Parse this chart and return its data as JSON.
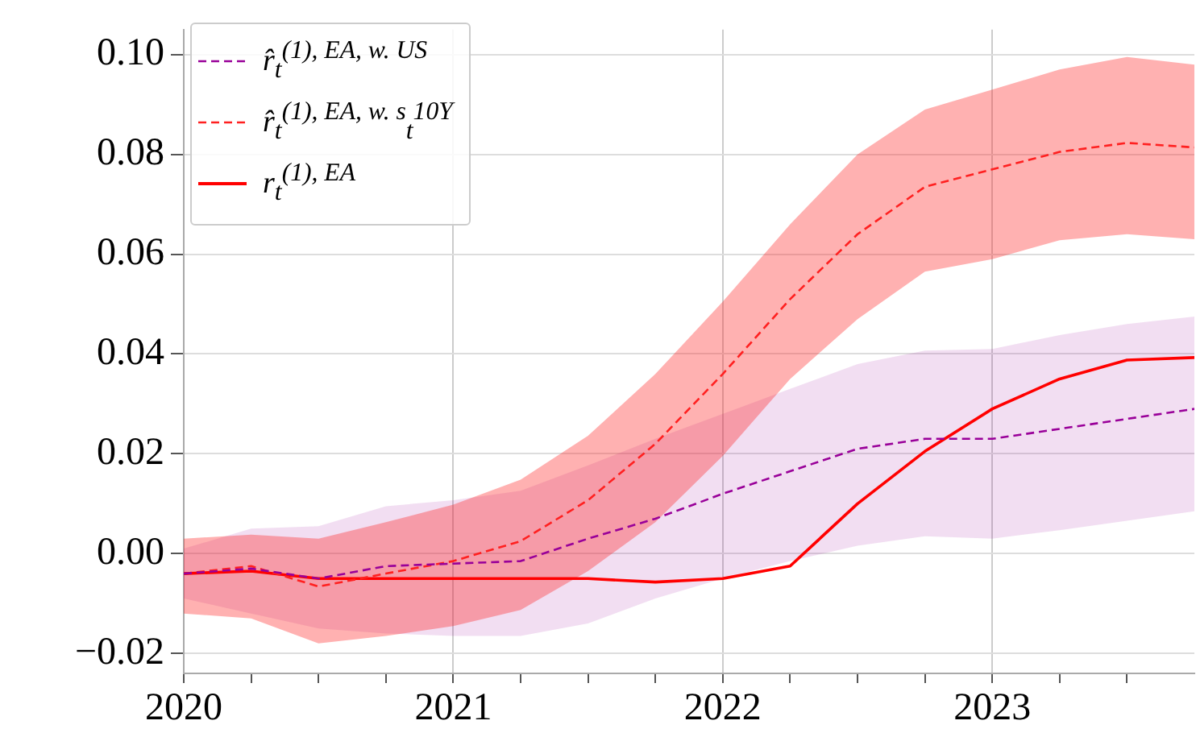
{
  "chart_data": {
    "type": "line",
    "x": [
      2020,
      2020.25,
      2020.5,
      2020.75,
      2021,
      2021.25,
      2021.5,
      2021.75,
      2022,
      2022.25,
      2022.5,
      2022.75,
      2023,
      2023.25,
      2023.5,
      2023.75
    ],
    "series": [
      {
        "name": "r̂$_{t}$$^{(1), EA, w. US}$",
        "color": "#990099",
        "line_style": "dashed",
        "values": [
          -0.004,
          -0.003,
          -0.005,
          -0.0025,
          -0.002,
          -0.0015,
          0.003,
          0.007,
          0.012,
          0.0165,
          0.021,
          0.023,
          0.023,
          0.025,
          0.027,
          0.029
        ],
        "lower": [
          -0.009,
          -0.012,
          -0.015,
          -0.016,
          -0.0165,
          -0.0165,
          -0.014,
          -0.009,
          -0.005,
          -0.0015,
          0.0016,
          0.0035,
          0.003,
          0.0047,
          0.0066,
          0.0085
        ],
        "upper": [
          0.001,
          0.005,
          0.0055,
          0.0095,
          0.0107,
          0.0126,
          0.0177,
          0.023,
          0.028,
          0.033,
          0.038,
          0.0407,
          0.041,
          0.0438,
          0.046,
          0.0475
        ]
      },
      {
        "name": "r̂$_{t}$$^{(1), EA, w. s}$$_{t}$$^{10Y}$",
        "color": "#ff2020",
        "line_style": "dashed",
        "values": [
          -0.004,
          -0.0025,
          -0.0066,
          -0.004,
          -0.0015,
          0.0025,
          0.0107,
          0.022,
          0.036,
          0.051,
          0.064,
          0.0735,
          0.077,
          0.0805,
          0.0823,
          0.0814
        ],
        "lower": [
          -0.012,
          -0.013,
          -0.018,
          -0.0165,
          -0.0145,
          -0.0113,
          -0.0035,
          0.0063,
          0.0196,
          0.035,
          0.047,
          0.0565,
          0.059,
          0.0628,
          0.064,
          0.063
        ],
        "upper": [
          0.003,
          0.0038,
          0.003,
          0.0063,
          0.0098,
          0.0148,
          0.0236,
          0.036,
          0.0505,
          0.066,
          0.08,
          0.089,
          0.093,
          0.097,
          0.0995,
          0.098
        ]
      },
      {
        "name": "r$_{t}$$^{(1), EA}$",
        "color": "#ff0000",
        "line_style": "solid",
        "values": [
          -0.004,
          -0.0035,
          -0.005,
          -0.005,
          -0.005,
          -0.005,
          -0.005,
          -0.0057,
          -0.005,
          -0.0025,
          0.01,
          0.0205,
          0.029,
          0.035,
          0.0388,
          0.0393
        ]
      }
    ],
    "xlim": [
      2020,
      2023.75
    ],
    "xticks": [
      2020,
      {
        "value": 2020.25,
        "label": null
      },
      {
        "value": 2020.5,
        "label": null
      },
      {
        "value": 2020.75,
        "label": null
      },
      2021,
      {
        "value": 2021.25,
        "label": null
      },
      {
        "value": 2021.5,
        "label": null
      },
      {
        "value": 2021.75,
        "label": null
      },
      2022,
      {
        "value": 2022.25,
        "label": null
      },
      {
        "value": 2022.5,
        "label": null
      },
      {
        "value": 2022.75,
        "label": null
      },
      2023,
      {
        "value": 2023.25,
        "label": null
      },
      {
        "value": 2023.5,
        "label": null
      }
    ],
    "ylim": [
      -0.024,
      0.105
    ],
    "yticks": [
      {
        "value": -0.02,
        "label": "−0.02"
      },
      {
        "value": 0,
        "label": "0.00"
      },
      {
        "value": 0.02,
        "label": "0.02"
      },
      {
        "value": 0.04,
        "label": "0.04"
      },
      {
        "value": 0.06,
        "label": "0.06"
      },
      {
        "value": 0.08,
        "label": "0.08"
      },
      {
        "value": 0.1,
        "label": "0.10"
      }
    ],
    "grid": true,
    "legend": "top left",
    "marker": "none"
  }
}
